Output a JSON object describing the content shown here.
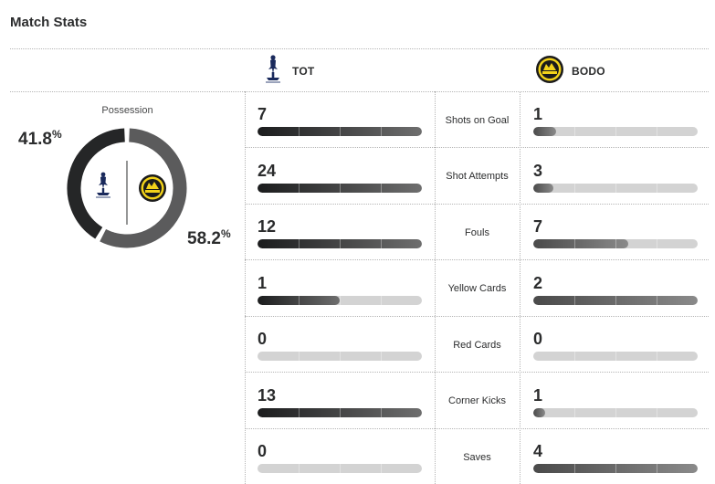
{
  "header": {
    "title": "Match Stats"
  },
  "teams": {
    "home": {
      "abbr": "TOT",
      "color": "#1f2021"
    },
    "away": {
      "abbr": "BODO",
      "color": "#f2d21a"
    }
  },
  "possession": {
    "label": "Possession",
    "home_value": "41.8",
    "away_value": "58.2",
    "unit": "%",
    "home_fraction": 0.418,
    "away_fraction": 0.582,
    "home_color": "#252627",
    "away_color": "#5b5b5c"
  },
  "stats": [
    {
      "label": "Shots on Goal",
      "home": "7",
      "away": "1",
      "home_fill": 1.0,
      "away_fill": 0.14
    },
    {
      "label": "Shot Attempts",
      "home": "24",
      "away": "3",
      "home_fill": 1.0,
      "away_fill": 0.12
    },
    {
      "label": "Fouls",
      "home": "12",
      "away": "7",
      "home_fill": 1.0,
      "away_fill": 0.58
    },
    {
      "label": "Yellow Cards",
      "home": "1",
      "away": "2",
      "home_fill": 0.5,
      "away_fill": 1.0
    },
    {
      "label": "Red Cards",
      "home": "0",
      "away": "0",
      "home_fill": 0.0,
      "away_fill": 0.0
    },
    {
      "label": "Corner Kicks",
      "home": "13",
      "away": "1",
      "home_fill": 1.0,
      "away_fill": 0.07
    },
    {
      "label": "Saves",
      "home": "0",
      "away": "4",
      "home_fill": 0.0,
      "away_fill": 1.0
    }
  ]
}
